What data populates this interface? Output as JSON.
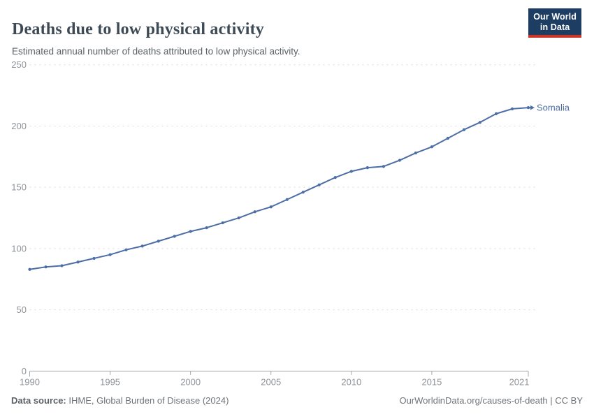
{
  "header": {
    "title": "Deaths due to low physical activity",
    "subtitle": "Estimated annual number of deaths attributed to low physical activity.",
    "logo_line1": "Our World",
    "logo_line2": "in Data"
  },
  "chart_data": {
    "type": "line",
    "title": "Deaths due to low physical activity",
    "subtitle": "Estimated annual number of deaths attributed to low physical activity.",
    "xlabel": "",
    "ylabel": "",
    "x": [
      1990,
      1991,
      1992,
      1993,
      1994,
      1995,
      1996,
      1997,
      1998,
      1999,
      2000,
      2001,
      2002,
      2003,
      2004,
      2005,
      2006,
      2007,
      2008,
      2009,
      2010,
      2011,
      2012,
      2013,
      2014,
      2015,
      2016,
      2017,
      2018,
      2019,
      2020,
      2021
    ],
    "series": [
      {
        "name": "Somalia",
        "color": "#4d6ea5",
        "values": [
          83,
          85,
          86,
          89,
          92,
          95,
          99,
          102,
          106,
          110,
          114,
          117,
          121,
          125,
          130,
          134,
          140,
          146,
          152,
          158,
          163,
          166,
          167,
          172,
          178,
          183,
          190,
          197,
          203,
          210,
          214,
          215
        ]
      }
    ],
    "xlim": [
      1990,
      2021
    ],
    "ylim": [
      0,
      250
    ],
    "xticks": [
      1990,
      1995,
      2000,
      2005,
      2010,
      2015,
      2021
    ],
    "yticks": [
      0,
      50,
      100,
      150,
      200,
      250
    ],
    "grid": "horizontal-dashed",
    "legend_position": "line-end-label"
  },
  "footer": {
    "source_label": "Data source:",
    "source_text": "IHME, Global Burden of Disease (2024)",
    "license_text": "OurWorldinData.org/causes-of-death | CC BY"
  },
  "colors": {
    "line": "#4d6ea5",
    "grid": "#dadada",
    "axis": "#a8a8a8",
    "tick_text": "#8f9499",
    "logo_bg": "#1d3d63",
    "logo_bar": "#cc3527"
  }
}
